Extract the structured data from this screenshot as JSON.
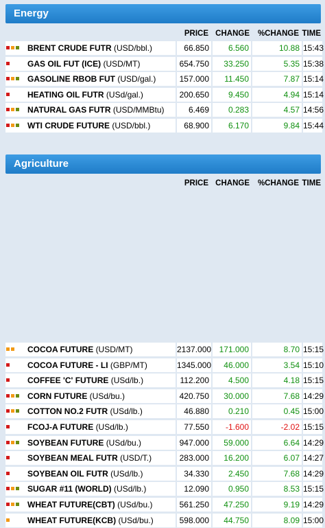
{
  "energy": {
    "title": "Energy",
    "headers": {
      "price": "PRICE",
      "change": "CHANGE",
      "pct": "%CHANGE",
      "time": "TIME"
    },
    "rows": [
      {
        "name": "BRENT CRUDE FUTR",
        "unit": "(USD/bbl.)",
        "price": "66.850",
        "change": "6.560",
        "pct": "10.88",
        "time": "15:43",
        "neg": false,
        "icons": [
          "red",
          "orange",
          "green"
        ]
      },
      {
        "name": "GAS OIL FUT (ICE)",
        "unit": "(USD/MT)",
        "price": "654.750",
        "change": "33.250",
        "pct": "5.35",
        "time": "15:38",
        "neg": false,
        "icons": [
          "red"
        ]
      },
      {
        "name": "GASOLINE RBOB FUT",
        "unit": "(USD/gal.)",
        "price": "157.000",
        "change": "11.450",
        "pct": "7.87",
        "time": "15:14",
        "neg": false,
        "icons": [
          "red",
          "orange",
          "green"
        ]
      },
      {
        "name": "HEATING OIL FUTR",
        "unit": "(USd/gal.)",
        "price": "200.650",
        "change": "9.450",
        "pct": "4.94",
        "time": "15:14",
        "neg": false,
        "icons": [
          "red"
        ]
      },
      {
        "name": "NATURAL GAS FUTR",
        "unit": "(USD/MMBtu)",
        "price": "6.469",
        "change": "0.283",
        "pct": "4.57",
        "time": "14:56",
        "neg": false,
        "icons": [
          "red",
          "orange",
          "green"
        ]
      },
      {
        "name": "WTI CRUDE FUTURE",
        "unit": "(USD/bbl.)",
        "price": "68.900",
        "change": "6.170",
        "pct": "9.84",
        "time": "15:44",
        "neg": false,
        "icons": [
          "red",
          "orange",
          "green"
        ]
      }
    ]
  },
  "agriculture": {
    "title": "Agriculture",
    "headers": {
      "price": "PRICE",
      "change": "CHANGE",
      "pct": "%CHANGE",
      "time": "TIME"
    },
    "rows": [
      {
        "name": "COCOA FUTURE",
        "unit": "(USD/MT)",
        "price": "2137.000",
        "change": "171.000",
        "pct": "8.70",
        "time": "15:15",
        "neg": false,
        "icons": [
          "orange",
          "orange"
        ]
      },
      {
        "name": "COCOA FUTURE - LI",
        "unit": "(GBP/MT)",
        "price": "1345.000",
        "change": "46.000",
        "pct": "3.54",
        "time": "15:10",
        "neg": false,
        "icons": [
          "red"
        ]
      },
      {
        "name": "COFFEE 'C' FUTURE",
        "unit": "(USd/lb.)",
        "price": "112.200",
        "change": "4.500",
        "pct": "4.18",
        "time": "15:15",
        "neg": false,
        "icons": [
          "red"
        ]
      },
      {
        "name": "CORN FUTURE",
        "unit": "(USd/bu.)",
        "price": "420.750",
        "change": "30.000",
        "pct": "7.68",
        "time": "14:29",
        "neg": false,
        "icons": [
          "red",
          "orange",
          "green"
        ]
      },
      {
        "name": "COTTON NO.2 FUTR",
        "unit": "(USd/lb.)",
        "price": "46.880",
        "change": "0.210",
        "pct": "0.45",
        "time": "15:00",
        "neg": false,
        "icons": [
          "red",
          "orange",
          "green"
        ]
      },
      {
        "name": "FCOJ-A FUTURE",
        "unit": "(USd/lb.)",
        "price": "77.550",
        "change": "-1.600",
        "pct": "-2.02",
        "time": "15:15",
        "neg": true,
        "icons": [
          "red"
        ]
      },
      {
        "name": "SOYBEAN FUTURE",
        "unit": "(USd/bu.)",
        "price": "947.000",
        "change": "59.000",
        "pct": "6.64",
        "time": "14:29",
        "neg": false,
        "icons": [
          "red",
          "orange",
          "green"
        ]
      },
      {
        "name": "SOYBEAN MEAL FUTR",
        "unit": "(USD/T.)",
        "price": "283.000",
        "change": "16.200",
        "pct": "6.07",
        "time": "14:27",
        "neg": false,
        "icons": [
          "red"
        ]
      },
      {
        "name": "SOYBEAN OIL FUTR",
        "unit": "(USd/lb.)",
        "price": "34.330",
        "change": "2.450",
        "pct": "7.68",
        "time": "14:29",
        "neg": false,
        "icons": [
          "red"
        ]
      },
      {
        "name": "SUGAR #11 (WORLD)",
        "unit": "(USd/lb.)",
        "price": "12.090",
        "change": "0.950",
        "pct": "8.53",
        "time": "15:15",
        "neg": false,
        "icons": [
          "red",
          "orange",
          "green"
        ]
      },
      {
        "name": "WHEAT FUTURE(CBT)",
        "unit": "(USd/bu.)",
        "price": "561.250",
        "change": "47.250",
        "pct": "9.19",
        "time": "14:29",
        "neg": false,
        "icons": [
          "red",
          "orange",
          "green"
        ]
      },
      {
        "name": "WHEAT FUTURE(KCB)",
        "unit": "(USd/bu.)",
        "price": "598.000",
        "change": "44.750",
        "pct": "8.09",
        "time": "15:00",
        "neg": false,
        "icons": [
          "orange"
        ]
      }
    ]
  }
}
